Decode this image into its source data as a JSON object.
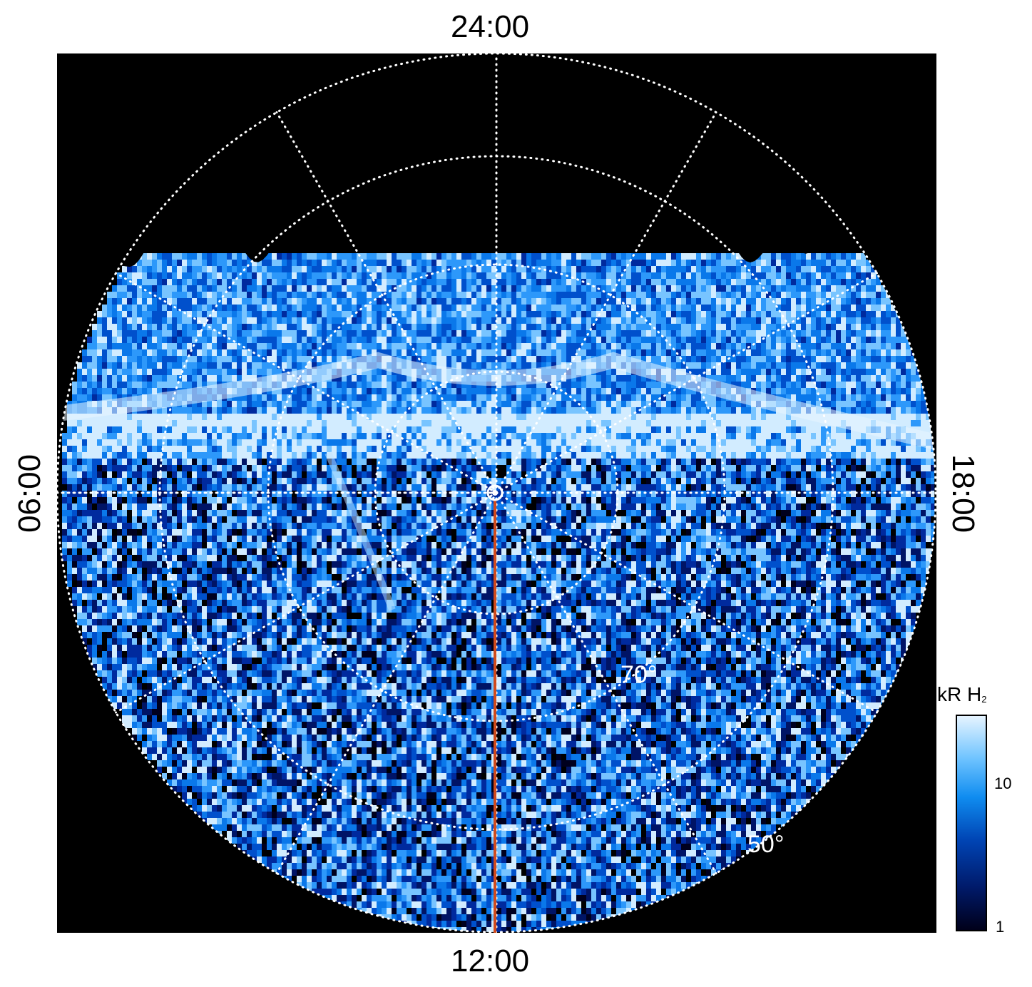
{
  "mlt_labels": {
    "top": "24:00",
    "bottom": "12:00",
    "left": "06:00",
    "right": "18:00"
  },
  "latitude_labels": [
    {
      "text": "70°",
      "latitude": 70
    },
    {
      "text": "50°",
      "latitude": 50
    }
  ],
  "colorbar": {
    "title": "kR H",
    "subscript": "2",
    "scale": "log",
    "ticks": [
      "10",
      "1"
    ],
    "min": 1,
    "max": 30
  },
  "colors": {
    "background": "#000000",
    "grid": "#ffffff",
    "meridian_line": "#d04a1c"
  },
  "grid": {
    "style": "dotted",
    "meridian_step_hours": 2
  }
}
